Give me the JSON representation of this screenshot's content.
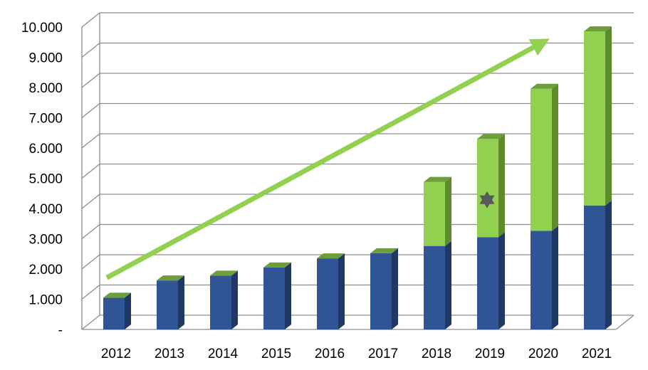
{
  "chart_data": {
    "type": "bar",
    "stacked": true,
    "three_d": true,
    "categories": [
      "2012",
      "2013",
      "2014",
      "2015",
      "2016",
      "2017",
      "2018",
      "2019",
      "2020",
      "2021"
    ],
    "series": [
      {
        "values": [
          1050,
          1620,
          1780,
          2050,
          2350,
          2520,
          2760,
          3050,
          3260,
          4100
        ]
      },
      {
        "values": [
          0,
          0,
          0,
          0,
          0,
          0,
          2120,
          3250,
          4700,
          5760
        ]
      }
    ],
    "y_ticks": [
      "-",
      "1.000",
      "2.000",
      "3.000",
      "4.000",
      "5.000",
      "6.000",
      "7.000",
      "8.000",
      "9.000",
      "10.000"
    ],
    "ylim": [
      0,
      10000
    ],
    "grid": true,
    "legend": "none",
    "trend_arrow": {
      "from_year": "2012",
      "to_year": "2021",
      "from_value": 2300,
      "to_value": 9850
    },
    "marker": {
      "category": "2019",
      "value": 4100,
      "shape": "star-of-david"
    },
    "colors": {
      "series1_front": "#2F5597",
      "series1_side": "#1F3864",
      "series1_top": "#23437A",
      "series2_front": "#92D050",
      "series2_side": "#5F8B2F",
      "series2_top": "#6E9E38",
      "arrow": "#92D050",
      "marker": "#595959"
    }
  }
}
